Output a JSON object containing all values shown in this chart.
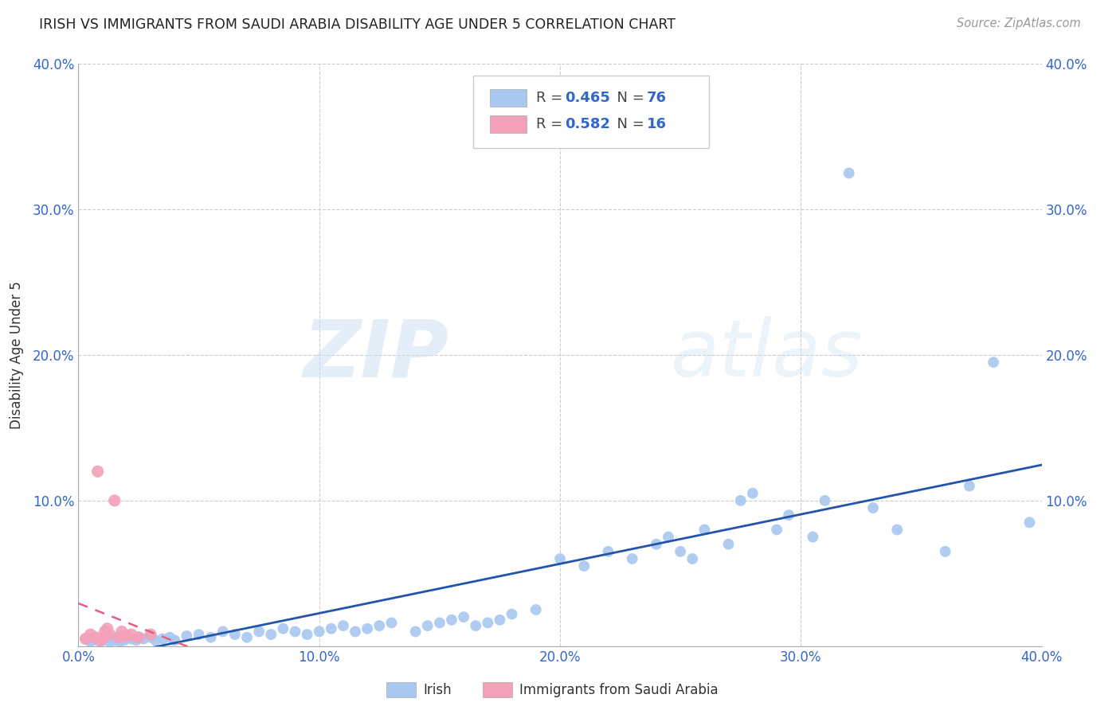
{
  "title": "IRISH VS IMMIGRANTS FROM SAUDI ARABIA DISABILITY AGE UNDER 5 CORRELATION CHART",
  "source": "Source: ZipAtlas.com",
  "ylabel": "Disability Age Under 5",
  "xlim": [
    0.0,
    0.4
  ],
  "ylim": [
    0.0,
    0.4
  ],
  "xticks": [
    0.0,
    0.1,
    0.2,
    0.3,
    0.4
  ],
  "yticks": [
    0.1,
    0.2,
    0.3,
    0.4
  ],
  "xtick_labels": [
    "0.0%",
    "10.0%",
    "20.0%",
    "30.0%",
    "40.0%"
  ],
  "ytick_labels": [
    "10.0%",
    "20.0%",
    "30.0%",
    "40.0%"
  ],
  "irish_R": 0.465,
  "irish_N": 76,
  "saudi_R": 0.582,
  "saudi_N": 16,
  "irish_color": "#a8c8f0",
  "irish_line_color": "#2255aa",
  "saudi_color": "#f4a0b8",
  "saudi_line_color": "#e06080",
  "watermark_zip": "ZIP",
  "watermark_atlas": "atlas",
  "background_color": "#ffffff",
  "grid_color": "#cccccc",
  "legend_irish_label": "Irish",
  "legend_saudi_label": "Immigrants from Saudi Arabia",
  "irish_x": [
    0.003,
    0.005,
    0.006,
    0.008,
    0.009,
    0.01,
    0.011,
    0.012,
    0.013,
    0.014,
    0.015,
    0.016,
    0.017,
    0.018,
    0.019,
    0.02,
    0.022,
    0.024,
    0.025,
    0.027,
    0.03,
    0.032,
    0.035,
    0.038,
    0.04,
    0.045,
    0.05,
    0.055,
    0.06,
    0.065,
    0.07,
    0.075,
    0.08,
    0.085,
    0.09,
    0.095,
    0.1,
    0.105,
    0.11,
    0.115,
    0.12,
    0.125,
    0.13,
    0.14,
    0.145,
    0.15,
    0.155,
    0.16,
    0.165,
    0.17,
    0.175,
    0.18,
    0.19,
    0.2,
    0.21,
    0.22,
    0.23,
    0.24,
    0.245,
    0.25,
    0.255,
    0.26,
    0.27,
    0.275,
    0.28,
    0.29,
    0.295,
    0.305,
    0.31,
    0.32,
    0.33,
    0.34,
    0.36,
    0.37,
    0.38,
    0.395
  ],
  "irish_y": [
    0.005,
    0.003,
    0.004,
    0.005,
    0.003,
    0.004,
    0.006,
    0.004,
    0.003,
    0.005,
    0.004,
    0.006,
    0.003,
    0.005,
    0.004,
    0.006,
    0.005,
    0.004,
    0.006,
    0.005,
    0.006,
    0.004,
    0.005,
    0.006,
    0.004,
    0.007,
    0.008,
    0.006,
    0.01,
    0.008,
    0.006,
    0.01,
    0.008,
    0.012,
    0.01,
    0.008,
    0.01,
    0.012,
    0.014,
    0.01,
    0.012,
    0.014,
    0.016,
    0.01,
    0.014,
    0.016,
    0.018,
    0.02,
    0.014,
    0.016,
    0.018,
    0.022,
    0.025,
    0.06,
    0.055,
    0.065,
    0.06,
    0.07,
    0.075,
    0.065,
    0.06,
    0.08,
    0.07,
    0.1,
    0.105,
    0.08,
    0.09,
    0.075,
    0.1,
    0.325,
    0.095,
    0.08,
    0.065,
    0.11,
    0.195,
    0.085
  ],
  "saudi_x": [
    0.003,
    0.005,
    0.007,
    0.008,
    0.009,
    0.01,
    0.011,
    0.012,
    0.013,
    0.015,
    0.017,
    0.018,
    0.02,
    0.022,
    0.025,
    0.03
  ],
  "saudi_y": [
    0.005,
    0.008,
    0.006,
    0.12,
    0.004,
    0.005,
    0.01,
    0.012,
    0.008,
    0.1,
    0.006,
    0.01,
    0.007,
    0.008,
    0.006,
    0.008
  ],
  "irish_trend_x": [
    0.0,
    0.4
  ],
  "saudi_trend_x_max": 0.038
}
